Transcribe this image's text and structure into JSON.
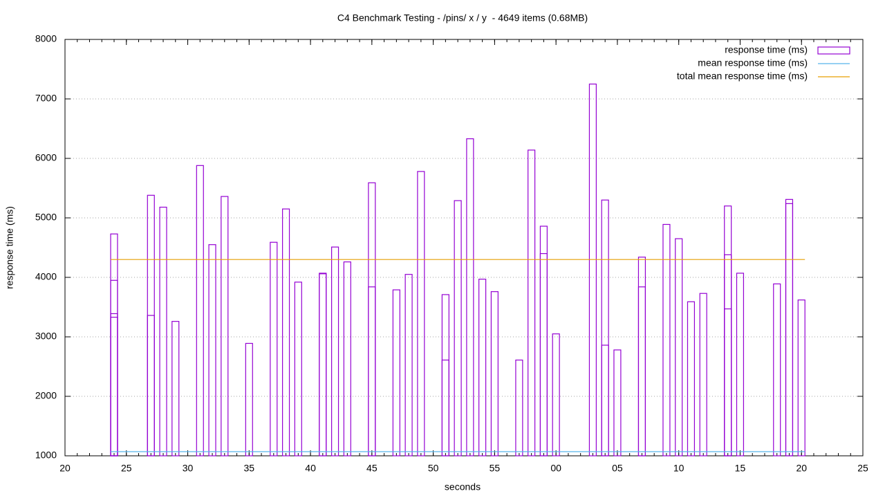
{
  "chart_data": {
    "type": "bar",
    "title": "C4 Benchmark Testing - /pins/ x / y  - 4649 items (0.68MB)",
    "x_label": "seconds",
    "y_label": "response time (ms)",
    "xlim": [
      20,
      85
    ],
    "ylim": [
      1000,
      8000
    ],
    "xticks": [
      20,
      25,
      30,
      35,
      40,
      45,
      50,
      55,
      {
        "value": 60,
        "label": "00"
      },
      {
        "value": 65,
        "label": "05"
      },
      {
        "value": 70,
        "label": "10"
      },
      {
        "value": 75,
        "label": "15"
      },
      {
        "value": 80,
        "label": "20"
      },
      {
        "value": 85,
        "label": "25"
      }
    ],
    "yticks": [
      1000,
      2000,
      3000,
      4000,
      5000,
      6000,
      7000,
      8000
    ],
    "grid": true,
    "legend": "top-right",
    "series": [
      {
        "name": "response time (ms)",
        "type": "bar",
        "color": "#9400d3",
        "x": [
          24,
          24,
          24,
          24,
          27,
          27,
          28,
          29,
          31,
          32,
          33,
          35,
          37,
          38,
          39,
          41,
          41,
          42,
          43,
          45,
          45,
          47,
          48,
          49,
          51,
          51,
          52,
          53,
          54,
          55,
          57,
          58,
          59,
          59,
          60,
          63,
          64,
          64,
          65,
          67,
          67,
          69,
          70,
          71,
          72,
          74,
          74,
          74,
          75,
          78,
          79,
          79,
          80
        ],
        "values": [
          4730,
          3950,
          3390,
          3330,
          5380,
          3360,
          5180,
          3260,
          5880,
          4550,
          5360,
          2890,
          4590,
          5150,
          3920,
          4070,
          4060,
          4510,
          4260,
          5590,
          3840,
          3790,
          4050,
          5780,
          3710,
          2610,
          5290,
          6330,
          3970,
          3760,
          2610,
          6140,
          4860,
          4400,
          3050,
          7250,
          5300,
          2860,
          2780,
          4340,
          3840,
          4890,
          4650,
          3590,
          3730,
          5200,
          4380,
          3470,
          4070,
          3890,
          5310,
          5240,
          3620
        ]
      },
      {
        "name": "mean response time (ms)",
        "type": "line",
        "color": "#56b4e9",
        "x": [
          24,
          80
        ],
        "values": [
          1070,
          1070
        ]
      },
      {
        "name": "total mean response time (ms)",
        "type": "line",
        "color": "#e69f00",
        "x": [
          24,
          80
        ],
        "values": [
          4300,
          4300
        ]
      }
    ]
  }
}
